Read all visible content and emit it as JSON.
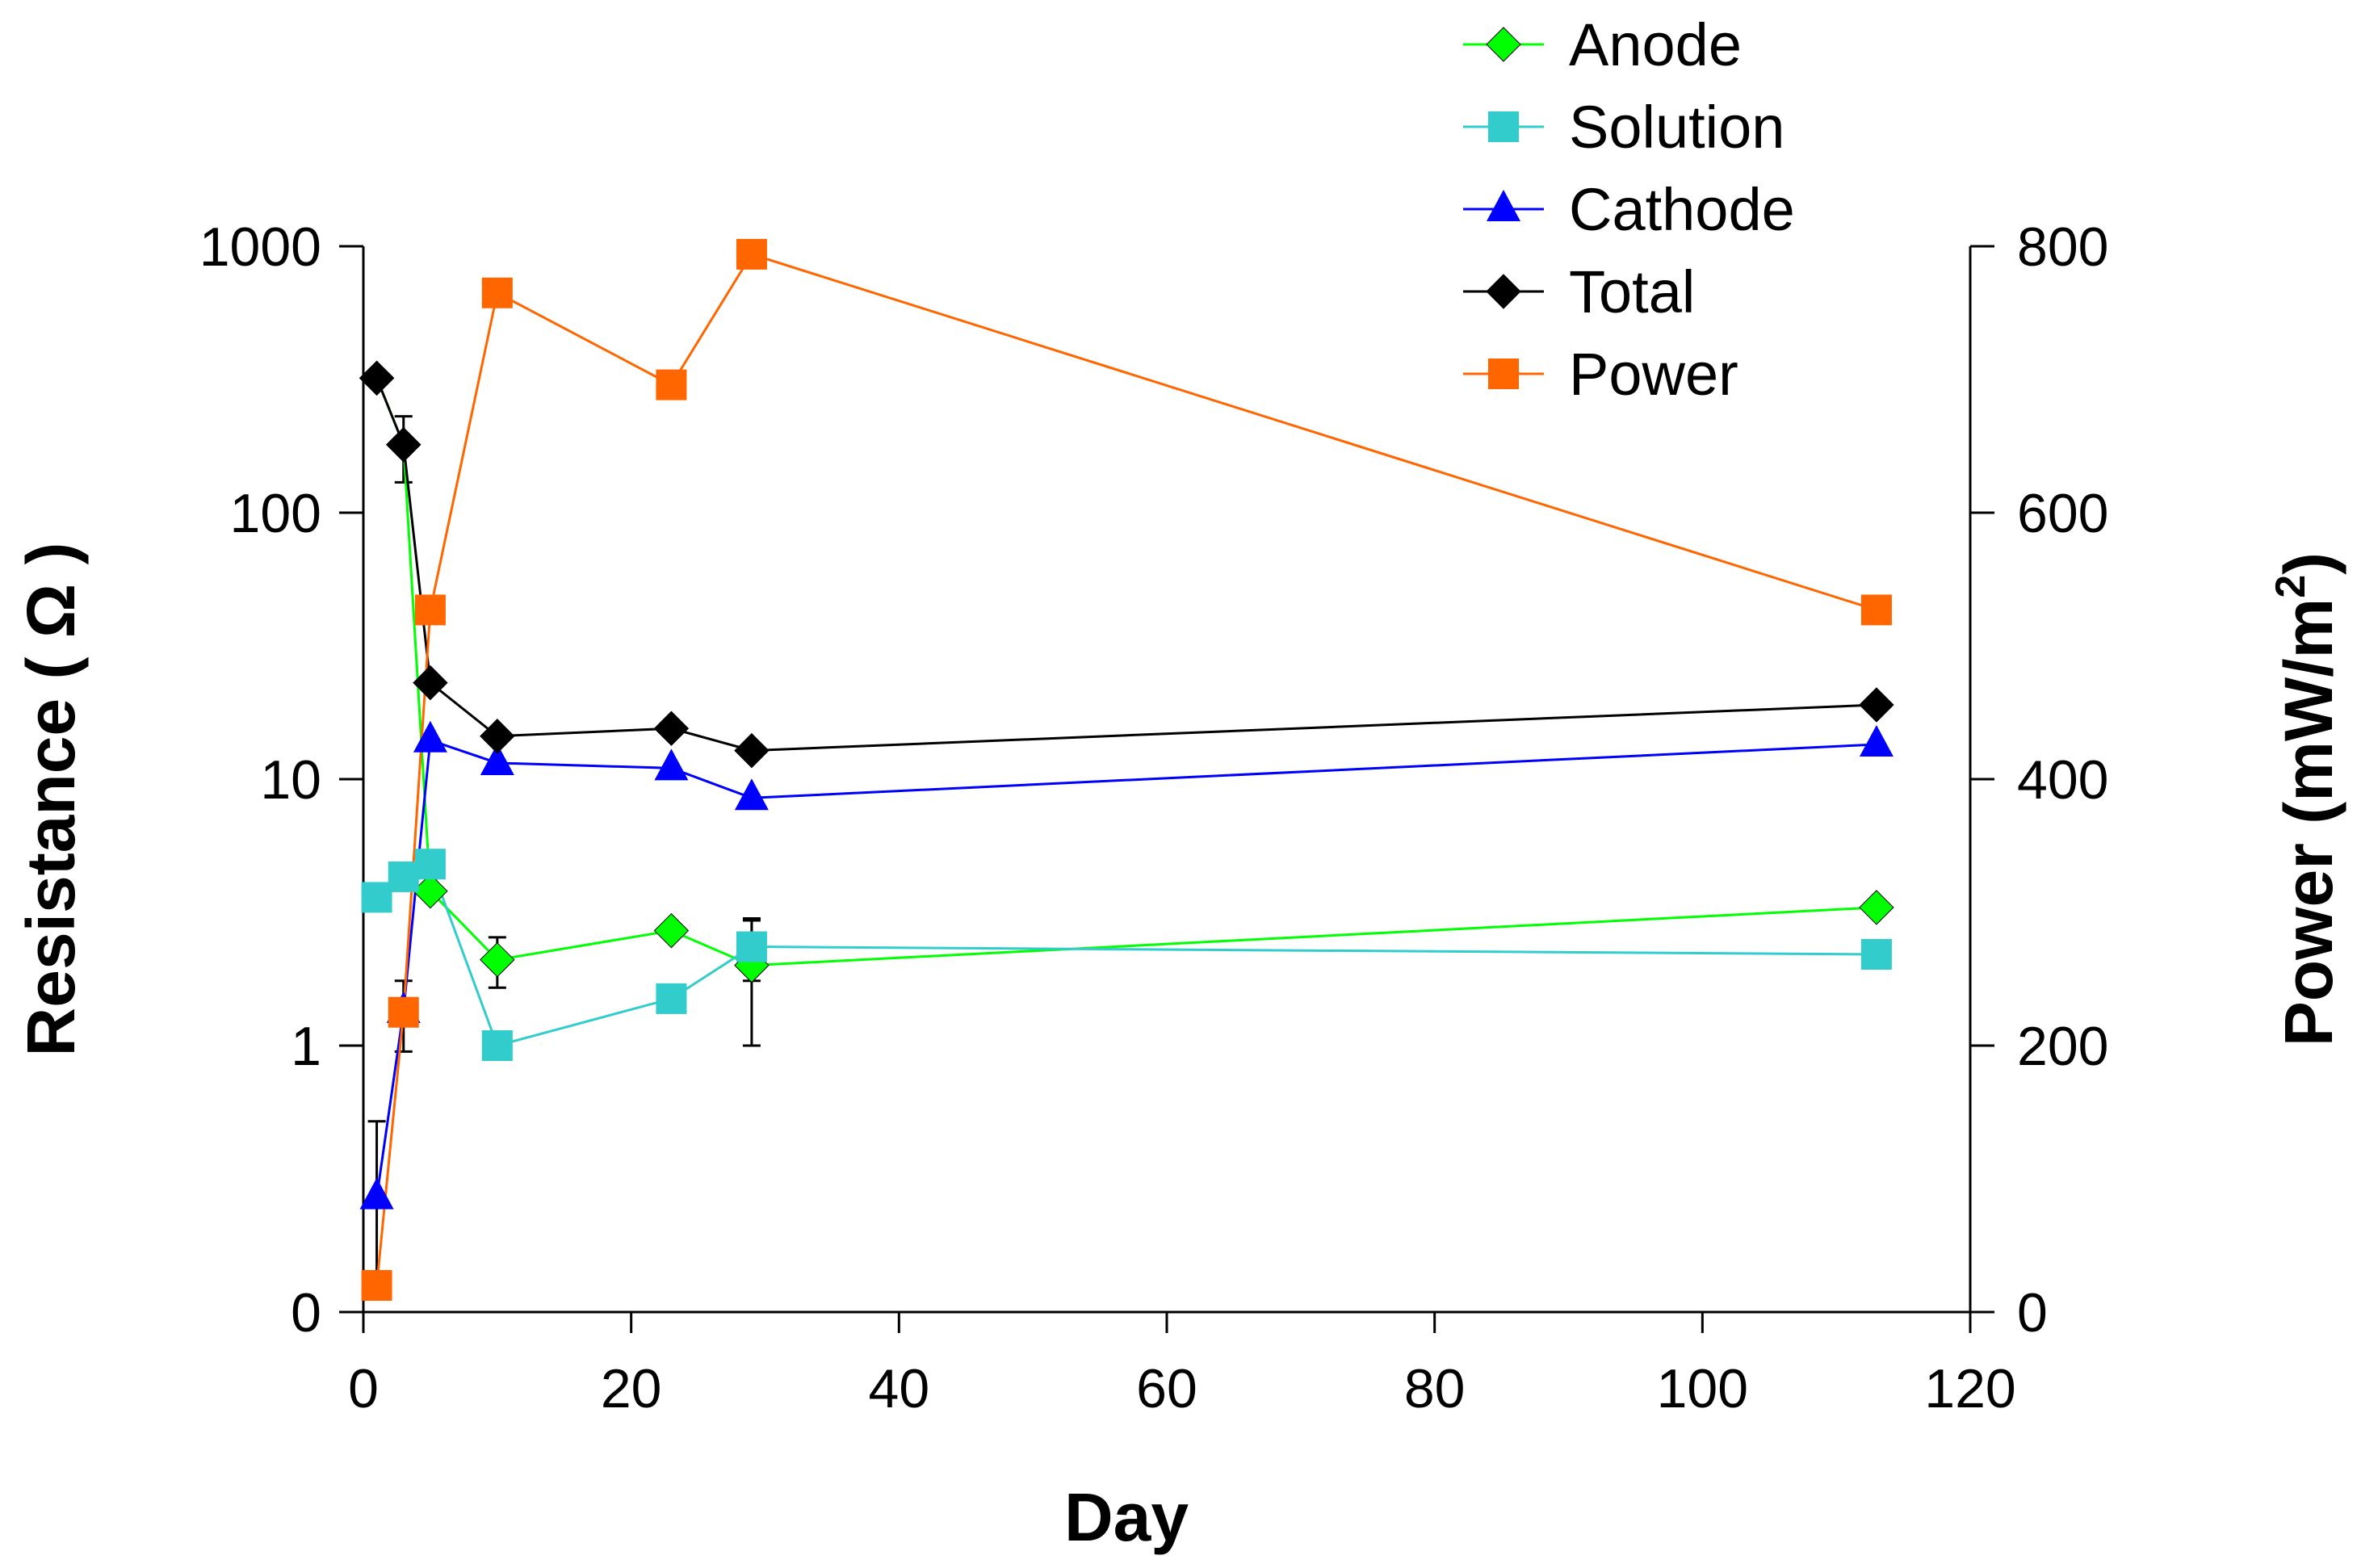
{
  "chart_data": {
    "type": "line",
    "title": "",
    "xlabel": "Day",
    "ylabel_left": "Resistance ( Ω )",
    "ylabel_right": "Power (mW/m",
    "ylabel_right_superscript": "2",
    "ylabel_right_close": ")",
    "xlim": [
      0,
      120
    ],
    "x_ticks": [
      0,
      20,
      40,
      60,
      80,
      100,
      120
    ],
    "x_tick_labels": [
      "0",
      "20",
      "40",
      "60",
      "80",
      "100",
      "120"
    ],
    "y_left_scale": "log",
    "y_left_ticks": [
      0.1,
      1,
      10,
      100,
      1000
    ],
    "y_left_tick_labels": [
      "0",
      "1",
      "10",
      "100",
      "1000"
    ],
    "y_right_ticks": [
      0,
      200,
      400,
      600,
      800
    ],
    "y_right_tick_labels": [
      "0",
      "200",
      "400",
      "600",
      "800"
    ],
    "legend_position": "top-right",
    "series": [
      {
        "name": "Anode",
        "axis": "left",
        "color": "#00ff00",
        "marker": "diamond",
        "x": [
          1,
          3,
          5,
          10,
          23,
          29,
          113
        ],
        "values": [
          320,
          180,
          3.8,
          2.1,
          2.7,
          2.0,
          3.3
        ],
        "error": [
          0,
          0,
          0,
          0.45,
          0,
          1.0,
          0
        ]
      },
      {
        "name": "Solution",
        "axis": "left",
        "color": "#33cccc",
        "marker": "square",
        "x": [
          1,
          3,
          5,
          10,
          23,
          29,
          113
        ],
        "values": [
          3.6,
          4.3,
          4.8,
          1.0,
          1.5,
          2.35,
          2.2
        ],
        "error": [
          0,
          0,
          0,
          0,
          0,
          0.6,
          0
        ]
      },
      {
        "name": "Cathode",
        "axis": "left",
        "color": "#0000ff",
        "marker": "triangle",
        "x": [
          1,
          3,
          5,
          10,
          23,
          29,
          113
        ],
        "values": [
          0.27,
          1.35,
          14,
          11.5,
          11,
          8.5,
          13.5
        ],
        "error": [
          0,
          0.4,
          0,
          0,
          0,
          0,
          0
        ]
      },
      {
        "name": "Total",
        "axis": "left",
        "color": "#000000",
        "marker": "diamond",
        "x": [
          1,
          3,
          5,
          10,
          23,
          29,
          113
        ],
        "values": [
          320,
          180,
          23,
          14.5,
          15.5,
          12.8,
          19
        ],
        "error": [
          0,
          50,
          0,
          0,
          0,
          0,
          0
        ]
      },
      {
        "name": "Power",
        "axis": "right",
        "color": "#ff6600",
        "marker": "square",
        "x": [
          1,
          3,
          5,
          10,
          23,
          29,
          113
        ],
        "values": [
          20,
          225,
          527,
          765,
          696,
          794,
          527
        ],
        "error": [
          0,
          0,
          0,
          0,
          0,
          0,
          0
        ]
      }
    ],
    "left_error_bars": [
      {
        "x": 1,
        "low": 0.12,
        "high": 0.52
      }
    ]
  }
}
